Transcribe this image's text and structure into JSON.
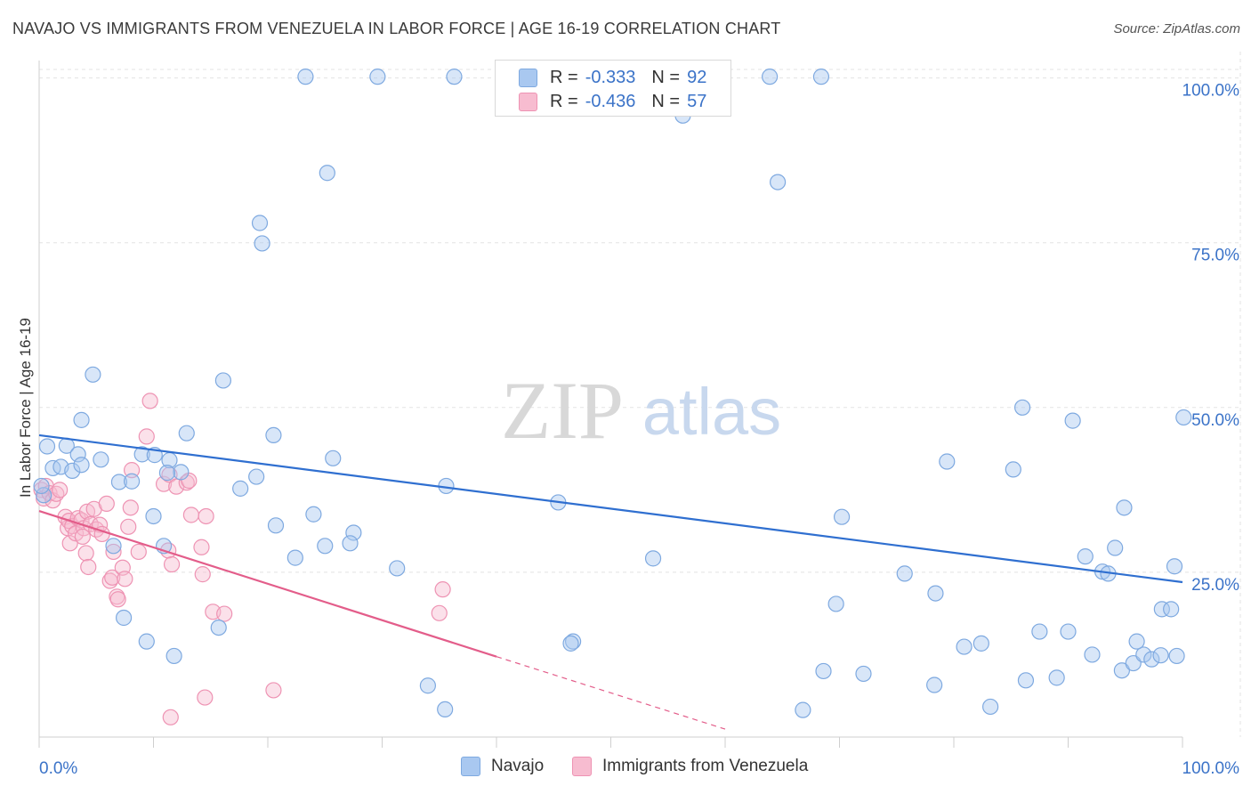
{
  "title": "NAVAJO VS IMMIGRANTS FROM VENEZUELA IN LABOR FORCE | AGE 16-19 CORRELATION CHART",
  "source": "Source: ZipAtlas.com",
  "watermark": {
    "zip": "ZIP",
    "atlas": "atlas"
  },
  "colors": {
    "navajo_fill": "#a9c8f0",
    "navajo_stroke": "#7ea9e0",
    "navajo_line": "#2f6fd0",
    "ven_fill": "#f7bcd0",
    "ven_stroke": "#ee93b3",
    "ven_line": "#e35d8a",
    "axis_text": "#3b73c8",
    "grid": "#e3e3e3"
  },
  "stats": {
    "r_label": "R =",
    "n_label": "N =",
    "navajo": {
      "r": "-0.333",
      "n": "92"
    },
    "venezuela": {
      "r": "-0.436",
      "n": "57"
    }
  },
  "chart_data": {
    "type": "scatter",
    "title": "NAVAJO VS IMMIGRANTS FROM VENEZUELA IN LABOR FORCE | AGE 16-19 CORRELATION CHART",
    "xlabel": "",
    "ylabel": "In Labor Force | Age 16-19",
    "xlim": [
      0,
      100
    ],
    "ylim": [
      0,
      104
    ],
    "x_tick_labels": [
      "0.0%",
      "100.0%"
    ],
    "y_ticks": [
      25,
      50,
      75,
      100
    ],
    "y_tick_labels": [
      "25.0%",
      "50.0%",
      "75.0%",
      "100.0%"
    ],
    "legend": [
      "Navajo",
      "Immigrants from Venezuela"
    ],
    "series": [
      {
        "name": "Navajo",
        "r": -0.333,
        "n": 92,
        "trend": {
          "x0": 0,
          "y0": 45.8,
          "x1": 100,
          "y1": 23.5
        },
        "points": [
          [
            23.3,
            100.2
          ],
          [
            29.6,
            100.2
          ],
          [
            36.3,
            100.2
          ],
          [
            63.9,
            100.2
          ],
          [
            68.4,
            100.2
          ],
          [
            56.3,
            94.3
          ],
          [
            25.2,
            85.6
          ],
          [
            64.6,
            84.2
          ],
          [
            19.3,
            78.0
          ],
          [
            19.5,
            74.9
          ],
          [
            4.7,
            55.0
          ],
          [
            16.1,
            54.1
          ],
          [
            0.7,
            44.1
          ],
          [
            2.4,
            44.2
          ],
          [
            3.4,
            42.9
          ],
          [
            5.4,
            42.1
          ],
          [
            9.0,
            42.9
          ],
          [
            10.1,
            42.8
          ],
          [
            11.4,
            42.0
          ],
          [
            12.4,
            40.2
          ],
          [
            12.9,
            46.1
          ],
          [
            20.5,
            45.8
          ],
          [
            25.7,
            42.3
          ],
          [
            3.7,
            48.1
          ],
          [
            1.2,
            40.8
          ],
          [
            1.9,
            41.0
          ],
          [
            2.9,
            40.4
          ],
          [
            3.7,
            41.3
          ],
          [
            7.0,
            38.7
          ],
          [
            8.1,
            38.8
          ],
          [
            17.6,
            37.7
          ],
          [
            19.0,
            39.5
          ],
          [
            35.6,
            38.1
          ],
          [
            11.2,
            40.1
          ],
          [
            10.0,
            33.5
          ],
          [
            20.7,
            32.1
          ],
          [
            24.0,
            33.8
          ],
          [
            27.5,
            31.0
          ],
          [
            27.2,
            29.4
          ],
          [
            25.0,
            29.0
          ],
          [
            22.4,
            27.2
          ],
          [
            31.3,
            25.6
          ],
          [
            6.5,
            29.0
          ],
          [
            10.9,
            29.0
          ],
          [
            7.4,
            18.1
          ],
          [
            9.4,
            14.5
          ],
          [
            11.8,
            12.3
          ],
          [
            15.7,
            16.6
          ],
          [
            45.4,
            35.6
          ],
          [
            46.7,
            14.5
          ],
          [
            46.5,
            14.2
          ],
          [
            53.7,
            27.1
          ],
          [
            34.0,
            7.8
          ],
          [
            35.5,
            4.2
          ],
          [
            70.2,
            33.4
          ],
          [
            69.7,
            20.2
          ],
          [
            75.7,
            24.8
          ],
          [
            78.4,
            21.8
          ],
          [
            80.9,
            13.7
          ],
          [
            83.2,
            4.6
          ],
          [
            82.4,
            14.2
          ],
          [
            85.2,
            40.6
          ],
          [
            86.3,
            8.6
          ],
          [
            87.5,
            16.0
          ],
          [
            89.0,
            9.0
          ],
          [
            92.1,
            12.5
          ],
          [
            90.0,
            16.0
          ],
          [
            91.5,
            27.4
          ],
          [
            93.0,
            25.1
          ],
          [
            94.1,
            28.7
          ],
          [
            94.7,
            10.1
          ],
          [
            95.7,
            11.2
          ],
          [
            96.6,
            12.5
          ],
          [
            97.3,
            11.8
          ],
          [
            98.1,
            12.4
          ],
          [
            98.2,
            19.4
          ],
          [
            99.0,
            19.4
          ],
          [
            99.5,
            12.3
          ],
          [
            99.3,
            25.9
          ],
          [
            100.1,
            48.5
          ],
          [
            93.5,
            24.8
          ],
          [
            96.0,
            14.5
          ],
          [
            79.4,
            41.8
          ],
          [
            86.0,
            50.0
          ],
          [
            90.4,
            48.0
          ],
          [
            94.9,
            34.8
          ],
          [
            68.6,
            10.0
          ],
          [
            72.1,
            9.6
          ],
          [
            78.3,
            7.9
          ],
          [
            66.8,
            4.1
          ],
          [
            0.4,
            36.7
          ],
          [
            0.2,
            38.1
          ]
        ]
      },
      {
        "name": "Immigrants from Venezuela",
        "r": -0.436,
        "n": 57,
        "trend": {
          "x0": 0,
          "y0": 34.3,
          "x1": 40,
          "y1": 12.2,
          "dash_x1": 60,
          "dash_y1": 1.2
        },
        "points": [
          [
            0.2,
            37.5
          ],
          [
            0.4,
            36.2
          ],
          [
            0.6,
            38.1
          ],
          [
            0.9,
            37.0
          ],
          [
            1.2,
            35.9
          ],
          [
            1.5,
            36.9
          ],
          [
            1.8,
            37.5
          ],
          [
            2.3,
            33.4
          ],
          [
            2.5,
            31.7
          ],
          [
            2.6,
            32.8
          ],
          [
            2.9,
            32.0
          ],
          [
            2.7,
            29.4
          ],
          [
            3.2,
            30.9
          ],
          [
            3.4,
            33.2
          ],
          [
            3.7,
            32.9
          ],
          [
            3.9,
            31.7
          ],
          [
            4.2,
            34.2
          ],
          [
            4.5,
            32.3
          ],
          [
            4.8,
            34.6
          ],
          [
            5.0,
            31.5
          ],
          [
            5.3,
            32.2
          ],
          [
            5.5,
            30.8
          ],
          [
            5.9,
            35.4
          ],
          [
            6.2,
            23.7
          ],
          [
            6.4,
            24.2
          ],
          [
            6.8,
            21.3
          ],
          [
            6.9,
            20.9
          ],
          [
            7.3,
            25.7
          ],
          [
            7.5,
            24.0
          ],
          [
            7.8,
            31.9
          ],
          [
            8.0,
            34.8
          ],
          [
            4.1,
            27.9
          ],
          [
            4.3,
            25.8
          ],
          [
            3.8,
            30.4
          ],
          [
            6.5,
            28.1
          ],
          [
            8.7,
            28.1
          ],
          [
            8.1,
            40.5
          ],
          [
            9.4,
            45.6
          ],
          [
            9.7,
            51.0
          ],
          [
            10.9,
            38.4
          ],
          [
            11.4,
            39.8
          ],
          [
            11.3,
            28.3
          ],
          [
            11.6,
            26.2
          ],
          [
            12.0,
            38.0
          ],
          [
            12.9,
            38.6
          ],
          [
            13.1,
            38.9
          ],
          [
            13.3,
            33.7
          ],
          [
            14.2,
            28.8
          ],
          [
            14.3,
            24.7
          ],
          [
            14.6,
            33.5
          ],
          [
            15.2,
            19.0
          ],
          [
            16.2,
            18.7
          ],
          [
            20.5,
            7.1
          ],
          [
            14.5,
            6.0
          ],
          [
            11.5,
            3.0
          ],
          [
            35.3,
            22.4
          ],
          [
            35.0,
            18.8
          ]
        ]
      }
    ]
  }
}
